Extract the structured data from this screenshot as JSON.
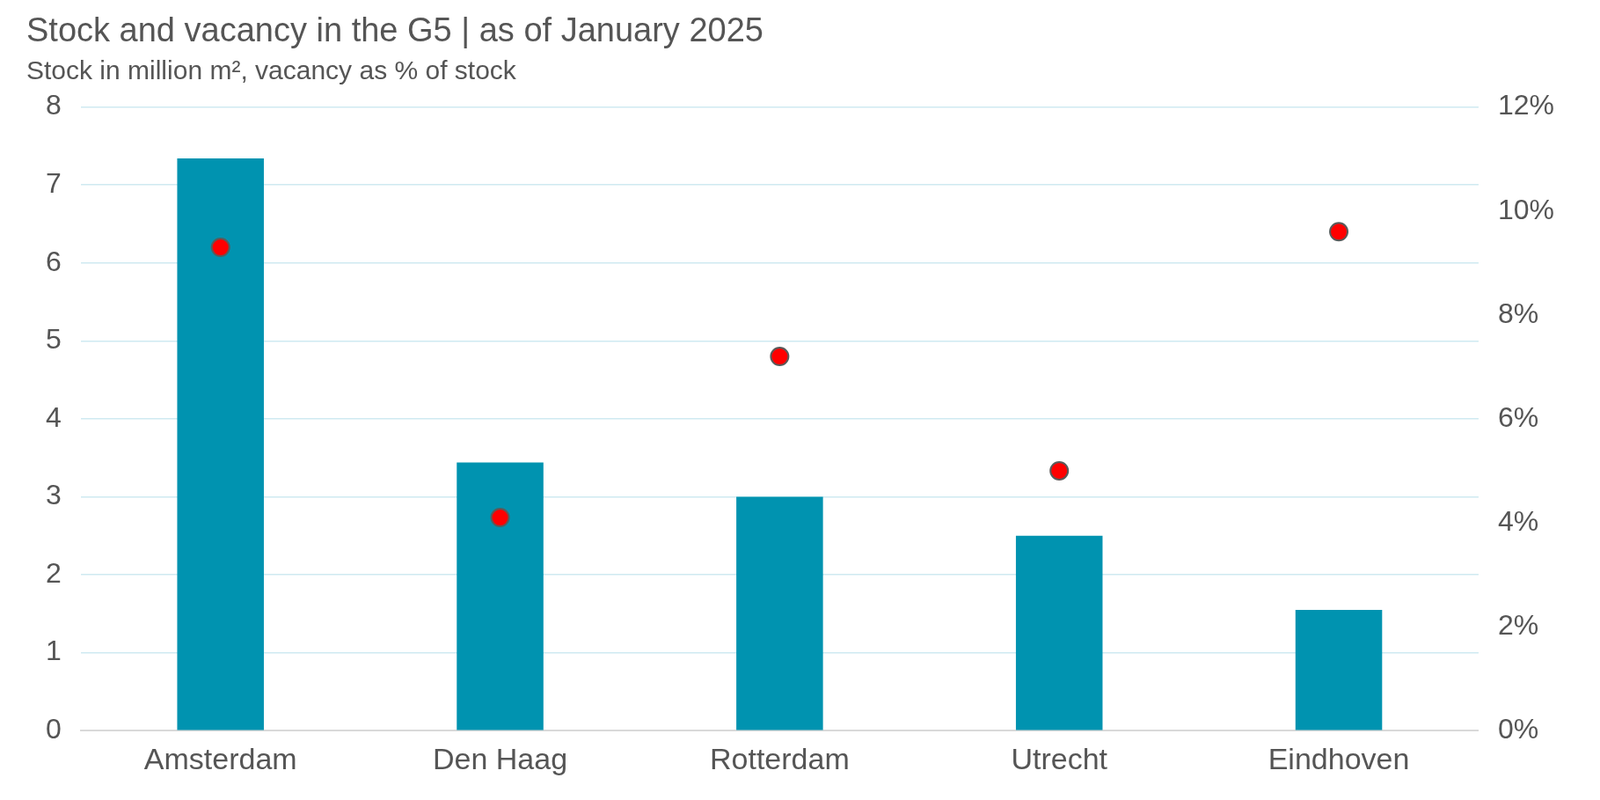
{
  "chart_data": {
    "type": "bar",
    "title": "Stock and vacancy in the G5 | as of January 2025",
    "subtitle": "Stock in million m², vacancy as % of stock",
    "categories": [
      "Amsterdam",
      "Den Haag",
      "Rotterdam",
      "Utrecht",
      "Eindhoven"
    ],
    "series": [
      {
        "type": "bar",
        "color": "#0093b0",
        "values": [
          7.34,
          3.44,
          3.0,
          2.5,
          1.55
        ]
      },
      {
        "type": "scatter",
        "color": "#ff0000",
        "marker": "circle",
        "axis": "y2",
        "values": [
          9.3,
          4.1,
          7.2,
          5.0,
          9.6
        ]
      }
    ],
    "ylim": [
      0,
      8
    ],
    "yticks": [
      0,
      1,
      2,
      3,
      4,
      5,
      6,
      7,
      8
    ],
    "y2lim": [
      0,
      12
    ],
    "y2ticks": [
      {
        "value": 0,
        "label": "0%"
      },
      {
        "value": 2,
        "label": "2%"
      },
      {
        "value": 4,
        "label": "4%"
      },
      {
        "value": 6,
        "label": "6%"
      },
      {
        "value": 8,
        "label": "8%"
      },
      {
        "value": 10,
        "label": "10%"
      },
      {
        "value": 12,
        "label": "12%"
      }
    ],
    "grid": true
  }
}
